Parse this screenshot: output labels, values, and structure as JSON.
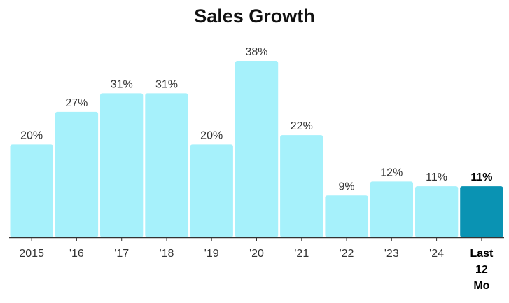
{
  "chart_data": {
    "type": "bar",
    "title": "Sales Growth",
    "categories": [
      "2015",
      "'16",
      "'17",
      "'18",
      "'19",
      "'20",
      "'21",
      "'22",
      "'23",
      "'24",
      "Last 12 Mo"
    ],
    "tick_label_lines": [
      [
        "2015"
      ],
      [
        "'16"
      ],
      [
        "'17"
      ],
      [
        "'18"
      ],
      [
        "'19"
      ],
      [
        "'20"
      ],
      [
        "'21"
      ],
      [
        "'22"
      ],
      [
        "'23"
      ],
      [
        "'24"
      ],
      [
        "Last",
        "12",
        "Mo"
      ]
    ],
    "values": [
      20,
      27,
      31,
      31,
      20,
      38,
      22,
      9,
      12,
      11,
      11
    ],
    "value_labels": [
      "20%",
      "27%",
      "31%",
      "31%",
      "20%",
      "38%",
      "22%",
      "9%",
      "12%",
      "11%",
      "11%"
    ],
    "highlight_index": 10,
    "xlabel": "",
    "ylabel": "",
    "ylim": [
      0,
      38
    ],
    "grid": false,
    "colors": {
      "bar": "#a6f1fb",
      "bar_highlight": "#0a93b3",
      "axis": "#333333"
    }
  }
}
